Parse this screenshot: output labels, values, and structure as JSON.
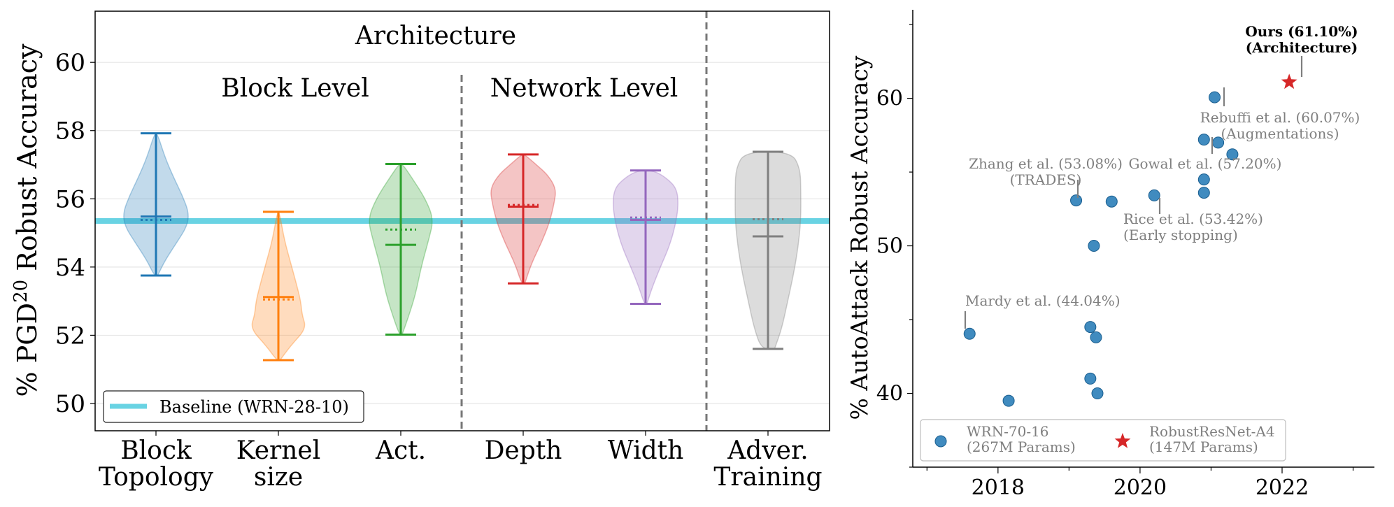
{
  "chart_data": [
    {
      "type": "violin",
      "ylabel": "% PGD",
      "ylabel_sup": "20",
      "ylabel_tail": " Robust Accuracy",
      "ylim": [
        49.2,
        61.5
      ],
      "yticks": [
        50,
        52,
        54,
        56,
        58,
        60
      ],
      "ytick_labels": [
        "50",
        "52",
        "54",
        "56",
        "58",
        "60"
      ],
      "grid": true,
      "baseline": {
        "value": 55.35,
        "label": "Baseline (WRN-28-10)",
        "color": "#69d3e3"
      },
      "group_labels": {
        "architecture": "Architecture",
        "block_level": "Block Level",
        "network_level": "Network Level"
      },
      "categories": [
        {
          "label": [
            "Block",
            "Topology"
          ],
          "color": "#1f77b4",
          "min": 53.75,
          "max": 57.92,
          "median": 55.48,
          "mean": 55.38,
          "shape": [
            [
              53.75,
              0.05
            ],
            [
              54.2,
              0.28
            ],
            [
              54.7,
              0.62
            ],
            [
              55.2,
              0.95
            ],
            [
              55.6,
              1.0
            ],
            [
              56.1,
              0.8
            ],
            [
              56.6,
              0.55
            ],
            [
              57.2,
              0.28
            ],
            [
              57.92,
              0.04
            ]
          ]
        },
        {
          "label": [
            "Kernel",
            "size"
          ],
          "color": "#ff7f0e",
          "min": 51.27,
          "max": 55.62,
          "median": 53.12,
          "mean": 53.05,
          "shape": [
            [
              51.27,
              0.05
            ],
            [
              51.7,
              0.38
            ],
            [
              52.2,
              0.85
            ],
            [
              52.6,
              0.72
            ],
            [
              53.0,
              0.68
            ],
            [
              53.5,
              0.55
            ],
            [
              54.1,
              0.38
            ],
            [
              54.8,
              0.18
            ],
            [
              55.62,
              0.03
            ]
          ]
        },
        {
          "label": [
            "Act."
          ],
          "color": "#2ca02c",
          "min": 52.02,
          "max": 57.02,
          "median": 54.65,
          "mean": 55.1,
          "shape": [
            [
              52.02,
              0.04
            ],
            [
              52.5,
              0.22
            ],
            [
              53.2,
              0.45
            ],
            [
              54.0,
              0.62
            ],
            [
              54.8,
              0.85
            ],
            [
              55.4,
              1.0
            ],
            [
              56.0,
              0.75
            ],
            [
              56.6,
              0.35
            ],
            [
              57.02,
              0.05
            ]
          ]
        },
        {
          "label": [
            "Depth"
          ],
          "color": "#d62728",
          "min": 53.52,
          "max": 57.3,
          "median": 55.77,
          "mean": 55.82,
          "shape": [
            [
              53.52,
              0.05
            ],
            [
              54.1,
              0.25
            ],
            [
              54.7,
              0.55
            ],
            [
              55.3,
              0.8
            ],
            [
              55.9,
              0.95
            ],
            [
              56.3,
              1.0
            ],
            [
              56.7,
              0.75
            ],
            [
              57.0,
              0.4
            ],
            [
              57.3,
              0.04
            ]
          ]
        },
        {
          "label": [
            "Width"
          ],
          "color": "#9467bd",
          "min": 52.92,
          "max": 56.83,
          "median": 55.38,
          "mean": 55.45,
          "shape": [
            [
              52.92,
              0.04
            ],
            [
              53.4,
              0.2
            ],
            [
              54.0,
              0.45
            ],
            [
              54.6,
              0.72
            ],
            [
              55.2,
              0.9
            ],
            [
              55.8,
              1.0
            ],
            [
              56.3,
              0.95
            ],
            [
              56.6,
              0.65
            ],
            [
              56.83,
              0.25
            ]
          ]
        },
        {
          "label": [
            "Adver.",
            "Training"
          ],
          "color": "#7f7f7f",
          "min": 51.6,
          "max": 57.38,
          "median": 54.9,
          "mean": 55.4,
          "shape": [
            [
              51.6,
              0.2
            ],
            [
              52.2,
              0.42
            ],
            [
              53.0,
              0.6
            ],
            [
              53.8,
              0.78
            ],
            [
              54.6,
              0.92
            ],
            [
              55.4,
              1.0
            ],
            [
              56.2,
              1.0
            ],
            [
              56.9,
              0.98
            ],
            [
              57.38,
              0.7
            ]
          ]
        }
      ]
    },
    {
      "type": "scatter",
      "ylabel": "% AutoAttack Robust Accuracy",
      "xlim": [
        2016.8,
        2023.3
      ],
      "ylim": [
        35,
        66
      ],
      "xticks": [
        2018,
        2020,
        2022
      ],
      "xtick_labels": [
        "2018",
        "2020",
        "2022"
      ],
      "yticks": [
        40,
        50,
        60
      ],
      "ytick_labels": [
        "40",
        "50",
        "60"
      ],
      "series": [
        {
          "name": "WRN-70-16 (267M Params)",
          "legend_lines": [
            "WRN-70-16",
            "(267M Params)"
          ],
          "marker": "circle",
          "color": "#1f77b4",
          "points": [
            [
              2017.6,
              44.04
            ],
            [
              2018.15,
              39.5
            ],
            [
              2019.1,
              53.08
            ],
            [
              2019.3,
              44.5
            ],
            [
              2019.3,
              41.0
            ],
            [
              2019.35,
              50.0
            ],
            [
              2019.38,
              43.8
            ],
            [
              2019.4,
              40.0
            ],
            [
              2019.6,
              53.0
            ],
            [
              2020.2,
              53.42
            ],
            [
              2020.9,
              57.2
            ],
            [
              2020.9,
              54.5
            ],
            [
              2020.9,
              53.6
            ],
            [
              2021.05,
              60.07
            ],
            [
              2021.1,
              57.0
            ],
            [
              2021.3,
              56.2
            ]
          ]
        },
        {
          "name": "RobustResNet-A4 (147M Params)",
          "legend_lines": [
            "RobustResNet-A4",
            "(147M Params)"
          ],
          "marker": "star",
          "color": "#d62728",
          "points": [
            [
              2022.1,
              61.1
            ]
          ]
        }
      ],
      "annotations": [
        {
          "lines": [
            "Ours (61.10%)",
            "(Architecture)"
          ],
          "bold": true
        },
        {
          "lines": [
            "Rebuffi et al. (60.07%)",
            "(Augmentations)"
          ]
        },
        {
          "lines": [
            "Gowal et al. (57.20%)"
          ]
        },
        {
          "lines": [
            "Zhang et al. (53.08%)",
            "(TRADES)"
          ]
        },
        {
          "lines": [
            "Rice et al. (53.42%)",
            "(Early stopping)"
          ]
        },
        {
          "lines": [
            "Mardy et al. (44.04%)"
          ]
        }
      ]
    }
  ]
}
